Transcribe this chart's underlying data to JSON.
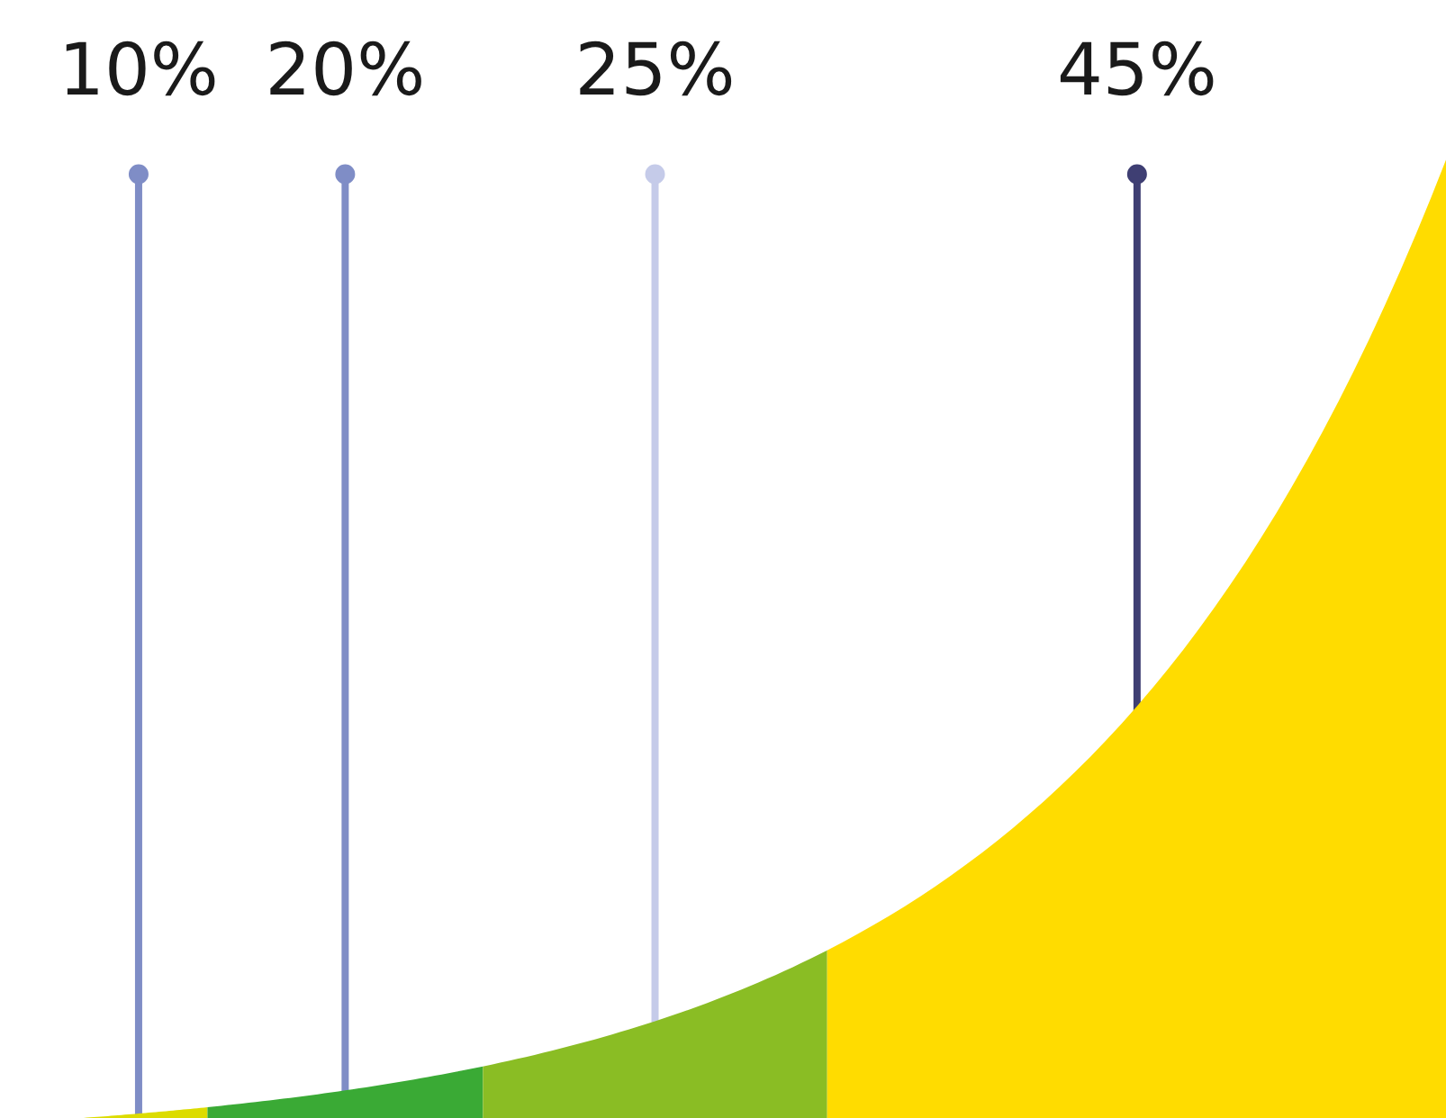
{
  "chart_data": {
    "type": "other",
    "categories": [
      null,
      null,
      null,
      null
    ],
    "values": [
      10,
      20,
      25,
      45
    ],
    "value_labels": [
      "10%",
      "20%",
      "25%",
      "45%"
    ],
    "colors": [
      "#dcdc00",
      "#3aaa35",
      "#8abd24",
      "#ffdc00"
    ]
  }
}
